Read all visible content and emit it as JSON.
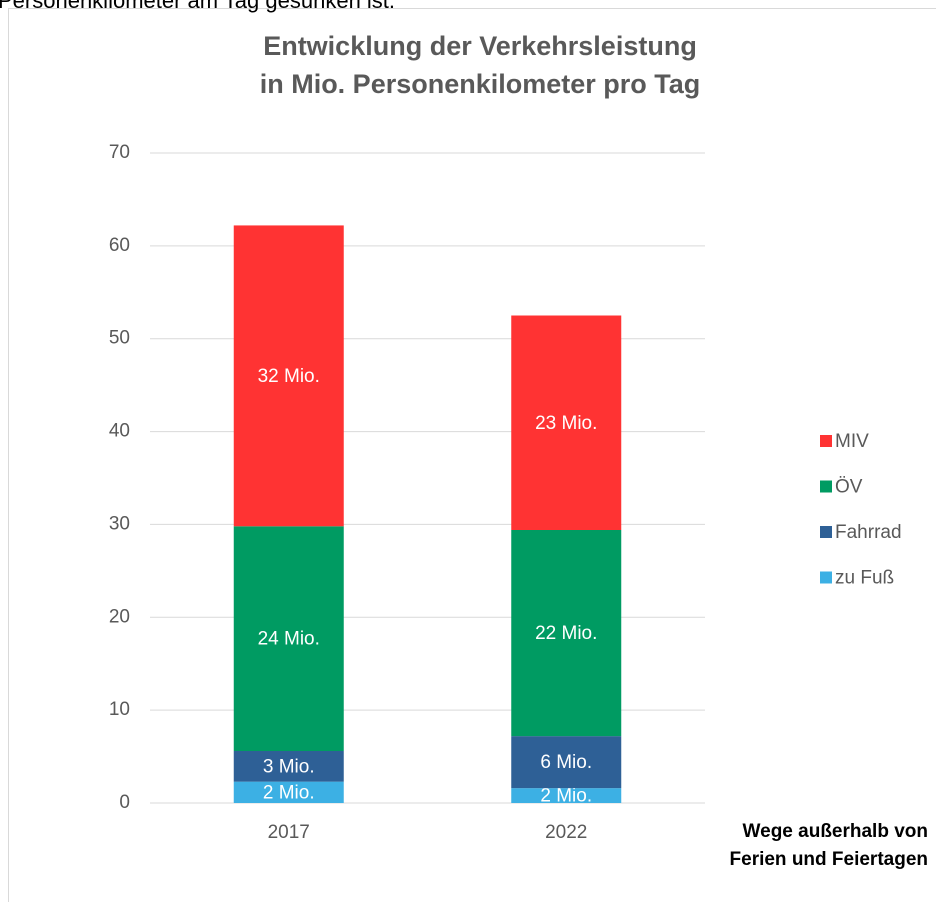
{
  "caption": "Personenkilometer am Tag gesunken ist.",
  "chart_data": {
    "type": "stacked_bar",
    "title": [
      "Entwicklung der Verkehrsleistung",
      "in Mio. Personenkilometer pro Tag"
    ],
    "annotation": [
      "Wege außerhalb von",
      "Ferien und Feiertagen"
    ],
    "categories": [
      "2017",
      "2022"
    ],
    "series": [
      {
        "name": "zu Fuß",
        "color": "#3cb0e4",
        "values": [
          2.3,
          1.6
        ],
        "value_labels": [
          "2 Mio.",
          "2 Mio."
        ]
      },
      {
        "name": "Fahrrad",
        "color": "#2e6096",
        "values": [
          3.3,
          5.6
        ],
        "value_labels": [
          "3 Mio.",
          "6 Mio."
        ]
      },
      {
        "name": "ÖV",
        "color": "#009b62",
        "values": [
          24.2,
          22.2
        ],
        "value_labels": [
          "24 Mio.",
          "22 Mio."
        ]
      },
      {
        "name": "MIV",
        "color": "#ff3333",
        "values": [
          32.4,
          23.1
        ],
        "value_labels": [
          "32 Mio.",
          "23 Mio."
        ]
      }
    ],
    "ylim": [
      0,
      70
    ],
    "yticks": [
      0,
      10,
      20,
      30,
      40,
      50,
      60,
      70
    ],
    "grid": true,
    "legend": "right"
  }
}
